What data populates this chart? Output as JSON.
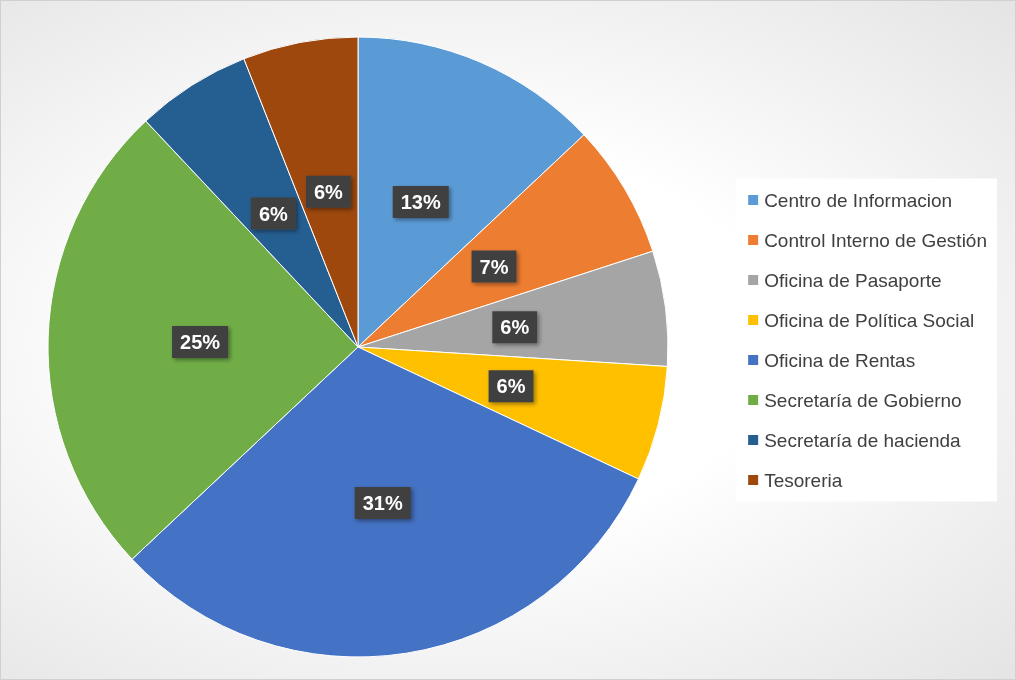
{
  "chart_data": {
    "type": "pie",
    "categories": [
      "Centro de Informacion",
      "Control Interno de Gestión",
      "Oficina de Pasaporte",
      "Oficina de Política Social",
      "Oficina de Rentas",
      "Secretaría de Gobierno",
      "Secretaría de hacienda",
      "Tesoreria"
    ],
    "values": [
      13,
      7,
      6,
      6,
      31,
      25,
      6,
      6
    ],
    "colors": [
      "#5b9bd5",
      "#ed7d31",
      "#a5a5a5",
      "#ffc000",
      "#4472c4",
      "#70ad47",
      "#255e91",
      "#9e480e"
    ],
    "value_labels": [
      "13%",
      "7%",
      "6%",
      "6%",
      "31%",
      "25%",
      "6%",
      "6%"
    ],
    "legend": "right"
  }
}
